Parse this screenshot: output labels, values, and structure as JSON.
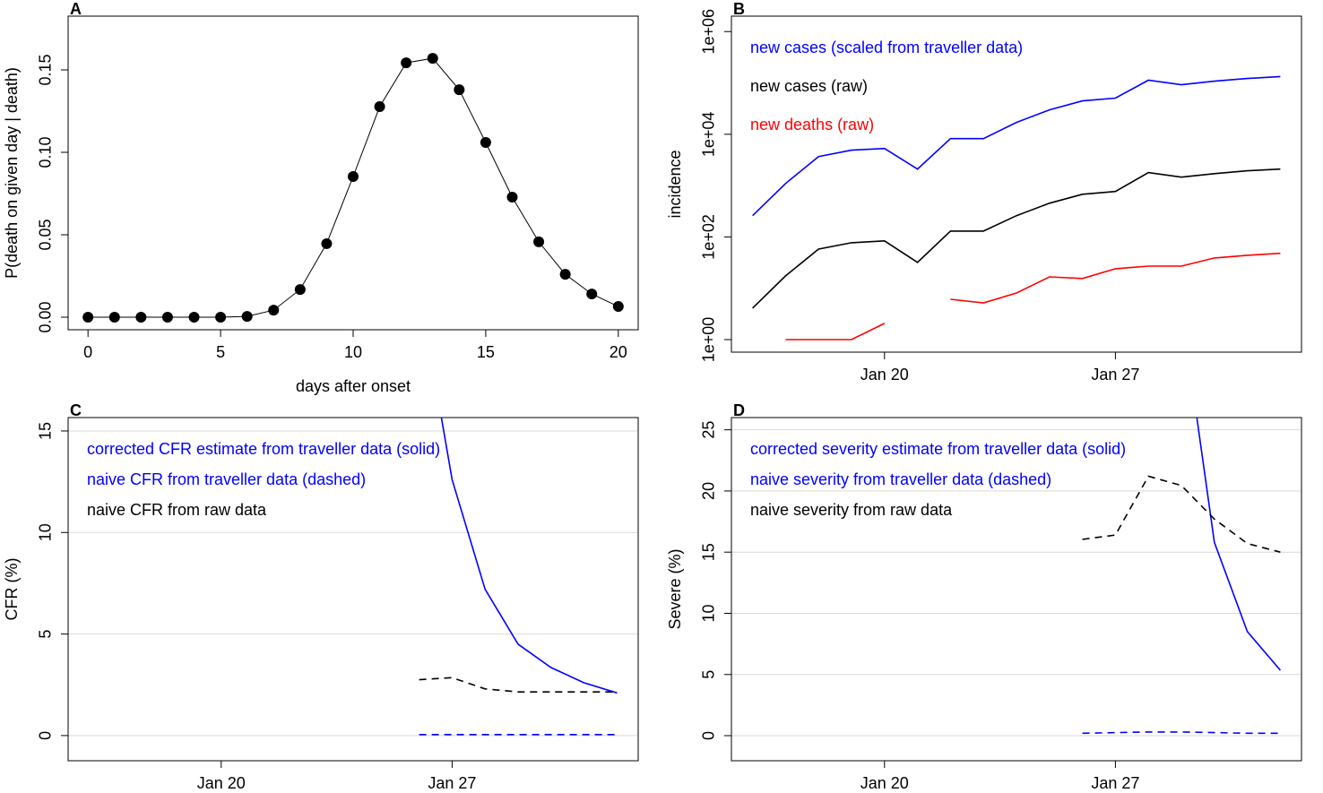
{
  "chart_data": [
    {
      "type": "line",
      "panel": "A",
      "markers": true,
      "color": "#000000",
      "xlabel": "days after onset",
      "ylabel": "P(death on given day | death)",
      "x": [
        0,
        1,
        2,
        3,
        4,
        5,
        6,
        7,
        8,
        9,
        10,
        11,
        12,
        13,
        14,
        15,
        16,
        17,
        18,
        19,
        20
      ],
      "values": [
        0,
        0,
        0,
        0,
        0,
        0,
        0.0005,
        0.0043,
        0.0168,
        0.0446,
        0.0853,
        0.1277,
        0.1543,
        0.157,
        0.138,
        0.106,
        0.0728,
        0.0457,
        0.026,
        0.0141,
        0.0065
      ],
      "xlim": [
        -0.75,
        20.75
      ],
      "xticks": [
        0,
        5,
        10,
        15,
        20
      ],
      "ylim": [
        -0.0076,
        0.1826
      ],
      "yticks": [
        {
          "value": 0,
          "label": "0.00"
        },
        {
          "value": 0.05,
          "label": "0.05"
        },
        {
          "value": 0.1,
          "label": "0.10"
        },
        {
          "value": 0.15,
          "label": "0.15"
        }
      ],
      "grid": false
    },
    {
      "type": "line",
      "panel": "B",
      "ylabel": "incidence",
      "log_y": true,
      "legend": "top-left",
      "x": [
        "Jan 16",
        "Jan 17",
        "Jan 18",
        "Jan 19",
        "Jan 20",
        "Jan 21",
        "Jan 22",
        "Jan 23",
        "Jan 24",
        "Jan 25",
        "Jan 26",
        "Jan 27",
        "Jan 28",
        "Jan 29",
        "Jan 30",
        "Jan 31",
        "Feb 1"
      ],
      "xticks": [
        "Jan 20",
        "Jan 27"
      ],
      "ylim": [
        0.57,
        2000000
      ],
      "yticks": [
        {
          "value": 1,
          "label": "1e+00"
        },
        {
          "value": 100,
          "label": "1e+02"
        },
        {
          "value": 10000,
          "label": "1e+04"
        },
        {
          "value": 1000000,
          "label": "1e+06"
        }
      ],
      "grid": false,
      "series": [
        {
          "name": "new cases (scaled from traveller data)",
          "color": "#0000ff",
          "dashed": false,
          "values": [
            259,
            1100,
            3680,
            4890,
            5290,
            2100,
            8240,
            8240,
            17000,
            29900,
            44700,
            50500,
            113000,
            92200,
            108000,
            122000,
            133000
          ]
        },
        {
          "name": "new cases (raw)",
          "color": "#000000",
          "dashed": false,
          "values": [
            4.1,
            17.4,
            58,
            77,
            84,
            32,
            130,
            130,
            259,
            454,
            679,
            767,
            1790,
            1460,
            1710,
            1940,
            2100
          ]
        },
        {
          "name": "new deaths (raw)",
          "color": "#ff0000",
          "dashed": false,
          "values": [
            null,
            1,
            1,
            1,
            2.07,
            null,
            6.1,
            5.2,
            8.1,
            16.7,
            15.5,
            24,
            27,
            27,
            39,
            44,
            48
          ]
        }
      ]
    },
    {
      "type": "line",
      "panel": "C",
      "ylabel": "CFR (%)",
      "legend": "top-left",
      "x": [
        "Jan 16",
        "Jan 17",
        "Jan 18",
        "Jan 19",
        "Jan 20",
        "Jan 21",
        "Jan 22",
        "Jan 23",
        "Jan 24",
        "Jan 25",
        "Jan 26",
        "Jan 27",
        "Jan 28",
        "Jan 29",
        "Jan 30",
        "Jan 31",
        "Feb 1"
      ],
      "xticks": [
        "Jan 20",
        "Jan 27"
      ],
      "ylim": [
        -1.24,
        15.66
      ],
      "yticks": [
        0,
        5,
        10,
        15
      ],
      "grid": true,
      "series": [
        {
          "name": "corrected CFR estimate from traveller data (solid)",
          "color": "#0000ff",
          "dashed": false,
          "values": [
            null,
            null,
            null,
            null,
            null,
            null,
            null,
            null,
            null,
            null,
            22,
            12.6,
            7.2,
            4.5,
            3.35,
            2.6,
            2.1
          ]
        },
        {
          "name": "naive CFR from traveller data (dashed)",
          "color": "#0000ff",
          "dashed": true,
          "values": [
            null,
            null,
            null,
            null,
            null,
            null,
            null,
            null,
            null,
            null,
            0.05,
            0.05,
            0.05,
            0.05,
            0.05,
            0.05,
            0.05
          ]
        },
        {
          "name": "naive CFR from raw data",
          "color": "#000000",
          "dashed": true,
          "values": [
            null,
            null,
            null,
            null,
            null,
            null,
            null,
            null,
            null,
            null,
            2.75,
            2.85,
            2.3,
            2.15,
            2.15,
            2.15,
            2.15
          ]
        }
      ]
    },
    {
      "type": "line",
      "panel": "D",
      "ylabel": "Severe (%)",
      "legend": "top-left",
      "x": [
        "Jan 16",
        "Jan 17",
        "Jan 18",
        "Jan 19",
        "Jan 20",
        "Jan 21",
        "Jan 22",
        "Jan 23",
        "Jan 24",
        "Jan 25",
        "Jan 26",
        "Jan 27",
        "Jan 28",
        "Jan 29",
        "Jan 30",
        "Jan 31",
        "Feb 1"
      ],
      "xticks": [
        "Jan 20",
        "Jan 27"
      ],
      "ylim": [
        -2.05,
        26
      ],
      "yticks": [
        0,
        5,
        10,
        15,
        20,
        25
      ],
      "grid": true,
      "series": [
        {
          "name": "corrected severity estimate from traveller data (solid)",
          "color": "#0000ff",
          "dashed": false,
          "values": [
            null,
            null,
            null,
            null,
            null,
            null,
            null,
            null,
            null,
            null,
            null,
            null,
            null,
            35,
            15.8,
            8.5,
            5.35
          ]
        },
        {
          "name": "naive severity from traveller data (dashed)",
          "color": "#0000ff",
          "dashed": true,
          "values": [
            null,
            null,
            null,
            null,
            null,
            null,
            null,
            null,
            null,
            null,
            0.2,
            0.25,
            0.3,
            0.3,
            0.25,
            0.2,
            0.2
          ]
        },
        {
          "name": "naive severity from raw data",
          "color": "#000000",
          "dashed": true,
          "values": [
            null,
            null,
            null,
            null,
            null,
            null,
            null,
            null,
            null,
            null,
            16.05,
            16.4,
            21.2,
            20.45,
            17.7,
            15.7,
            15.0
          ]
        }
      ]
    }
  ]
}
